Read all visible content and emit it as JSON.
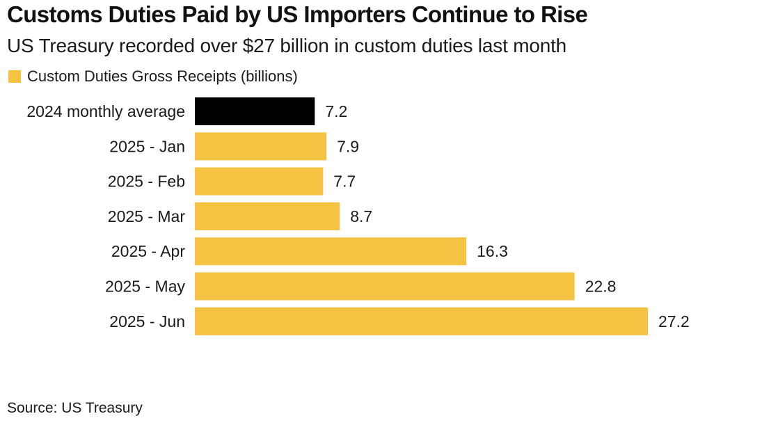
{
  "chart_data": {
    "type": "bar",
    "orientation": "horizontal",
    "title": "Customs Duties Paid by US Importers Continue to Rise",
    "subtitle": "US Treasury recorded over $27 billion in custom duties last month",
    "legend": {
      "label": "Custom Duties Gross Receipts (billions)",
      "color": "#F5C242",
      "placement": "top-left"
    },
    "categories": [
      "2024 monthly average",
      "2025 - Jan",
      "2025 - Feb",
      "2025 - Mar",
      "2025 - Apr",
      "2025 - May",
      "2025 - Jun"
    ],
    "values": [
      7.2,
      7.9,
      7.7,
      8.7,
      16.3,
      22.8,
      27.2
    ],
    "value_labels": [
      "7.2",
      "7.9",
      "7.7",
      "8.7",
      "16.3",
      "22.8",
      "27.2"
    ],
    "bar_colors": [
      "#000000",
      "#F5C242",
      "#F5C242",
      "#F5C242",
      "#F5C242",
      "#F5C242",
      "#F5C242"
    ],
    "xlim": [
      0,
      27.2
    ],
    "xlabel": "",
    "ylabel": "",
    "grid": false,
    "source": "Source: US Treasury"
  }
}
